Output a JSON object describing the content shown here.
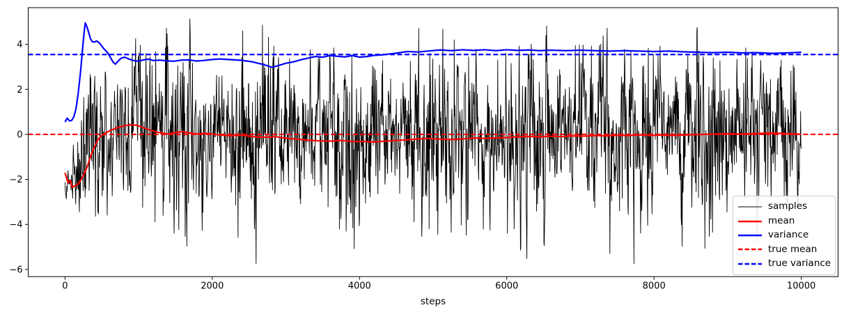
{
  "chart_data": {
    "type": "line",
    "title": "",
    "xlabel": "steps",
    "ylabel": "",
    "grid": false,
    "legend_position": "lower right",
    "xlim": [
      -500,
      10500
    ],
    "ylim": [
      -6.32,
      5.63
    ],
    "x_ticks": {
      "values": [
        0,
        2000,
        4000,
        6000,
        8000,
        10000
      ],
      "labels": [
        "0",
        "2000",
        "4000",
        "6000",
        "8000",
        "10000"
      ]
    },
    "y_ticks": {
      "values": [
        4,
        2,
        0,
        -2,
        -4,
        -6
      ],
      "labels": [
        "4",
        "2",
        "0",
        "−2",
        "−4",
        "−6"
      ]
    },
    "axhlines": {
      "true_mean": {
        "y": 0.0,
        "color": "#ff0000",
        "dash": "dashed",
        "linewidth": 2.2
      },
      "true_variance": {
        "y": 3.55,
        "color": "#0000ff",
        "dash": "dashed",
        "linewidth": 2.2
      }
    },
    "series": [
      {
        "name": "samples",
        "color": "#000000",
        "linewidth": 0.9,
        "style": "solid",
        "model": {
          "description": "noisy sample trace, ~10000 correlated random draws; starts clustered near -2.2 then spreads to stationary mean 0, std ~1.82 (variance ~3.55); observed extremes about -5.75 and +5.15",
          "seed": 1337,
          "n_points": 2200,
          "x_max": 10000,
          "initial_center": -2.2,
          "initial_spread": 0.32,
          "warmup_start_step": 60,
          "warmup_end_step": 380,
          "stationary_mean": 0,
          "stationary_std": 1.82,
          "ar_coeff": 0.42,
          "observed_min": -5.75,
          "observed_max": 5.15
        }
      },
      {
        "name": "mean",
        "color": "#ff0000",
        "linewidth": 2.2,
        "style": "solid",
        "points": [
          [
            0,
            -1.7
          ],
          [
            40,
            -2.15
          ],
          [
            70,
            -2.05
          ],
          [
            100,
            -2.35
          ],
          [
            140,
            -2.28
          ],
          [
            180,
            -2.2
          ],
          [
            220,
            -2.0
          ],
          [
            260,
            -1.75
          ],
          [
            300,
            -1.45
          ],
          [
            350,
            -0.95
          ],
          [
            400,
            -0.55
          ],
          [
            450,
            -0.22
          ],
          [
            500,
            -0.05
          ],
          [
            560,
            0.08
          ],
          [
            620,
            0.18
          ],
          [
            700,
            0.28
          ],
          [
            800,
            0.38
          ],
          [
            900,
            0.43
          ],
          [
            980,
            0.4
          ],
          [
            1060,
            0.3
          ],
          [
            1150,
            0.2
          ],
          [
            1250,
            0.1
          ],
          [
            1350,
            0.04
          ],
          [
            1420,
            0.02
          ],
          [
            1500,
            0.09
          ],
          [
            1600,
            0.12
          ],
          [
            1700,
            0.06
          ],
          [
            1800,
            0.02
          ],
          [
            1900,
            0.05
          ],
          [
            2000,
            0.02
          ],
          [
            2100,
            -0.03
          ],
          [
            2250,
            -0.06
          ],
          [
            2400,
            -0.03
          ],
          [
            2550,
            -0.1
          ],
          [
            2700,
            -0.13
          ],
          [
            2850,
            -0.1
          ],
          [
            3000,
            -0.17
          ],
          [
            3150,
            -0.21
          ],
          [
            3300,
            -0.26
          ],
          [
            3450,
            -0.29
          ],
          [
            3600,
            -0.3
          ],
          [
            3750,
            -0.27
          ],
          [
            3900,
            -0.32
          ],
          [
            4050,
            -0.31
          ],
          [
            4200,
            -0.34
          ],
          [
            4350,
            -0.3
          ],
          [
            4500,
            -0.27
          ],
          [
            4650,
            -0.24
          ],
          [
            4800,
            -0.2
          ],
          [
            4950,
            -0.18
          ],
          [
            5100,
            -0.21
          ],
          [
            5250,
            -0.23
          ],
          [
            5400,
            -0.2
          ],
          [
            5550,
            -0.16
          ],
          [
            5700,
            -0.18
          ],
          [
            5850,
            -0.16
          ],
          [
            6000,
            -0.14
          ],
          [
            6150,
            -0.11
          ],
          [
            6300,
            -0.09
          ],
          [
            6450,
            -0.11
          ],
          [
            6600,
            -0.08
          ],
          [
            6750,
            -0.1
          ],
          [
            6900,
            -0.07
          ],
          [
            7050,
            -0.08
          ],
          [
            7200,
            -0.05
          ],
          [
            7350,
            -0.07
          ],
          [
            7500,
            -0.04
          ],
          [
            7650,
            -0.05
          ],
          [
            7800,
            -0.02
          ],
          [
            7950,
            -0.05
          ],
          [
            8100,
            -0.03
          ],
          [
            8250,
            -0.05
          ],
          [
            8400,
            -0.03
          ],
          [
            8550,
            -0.01
          ],
          [
            8700,
            0.0
          ],
          [
            8850,
            0.02
          ],
          [
            9000,
            0.03
          ],
          [
            9150,
            0.01
          ],
          [
            9300,
            0.03
          ],
          [
            9450,
            0.05
          ],
          [
            9600,
            0.06
          ],
          [
            9750,
            0.04
          ],
          [
            9900,
            0.02
          ],
          [
            10000,
            0.0
          ]
        ]
      },
      {
        "name": "variance",
        "color": "#0000ff",
        "linewidth": 2.2,
        "style": "solid",
        "points": [
          [
            0,
            0.55
          ],
          [
            30,
            0.72
          ],
          [
            60,
            0.6
          ],
          [
            90,
            0.62
          ],
          [
            120,
            0.78
          ],
          [
            150,
            1.15
          ],
          [
            180,
            1.85
          ],
          [
            210,
            2.75
          ],
          [
            240,
            3.85
          ],
          [
            260,
            4.55
          ],
          [
            275,
            4.95
          ],
          [
            295,
            4.8
          ],
          [
            320,
            4.55
          ],
          [
            345,
            4.25
          ],
          [
            370,
            4.12
          ],
          [
            400,
            4.1
          ],
          [
            430,
            4.15
          ],
          [
            465,
            4.07
          ],
          [
            500,
            3.92
          ],
          [
            540,
            3.76
          ],
          [
            580,
            3.62
          ],
          [
            620,
            3.4
          ],
          [
            655,
            3.2
          ],
          [
            685,
            3.12
          ],
          [
            720,
            3.25
          ],
          [
            760,
            3.38
          ],
          [
            810,
            3.43
          ],
          [
            860,
            3.36
          ],
          [
            910,
            3.3
          ],
          [
            960,
            3.26
          ],
          [
            1020,
            3.27
          ],
          [
            1080,
            3.32
          ],
          [
            1140,
            3.34
          ],
          [
            1200,
            3.28
          ],
          [
            1280,
            3.3
          ],
          [
            1380,
            3.27
          ],
          [
            1480,
            3.25
          ],
          [
            1580,
            3.3
          ],
          [
            1680,
            3.31
          ],
          [
            1780,
            3.26
          ],
          [
            1880,
            3.28
          ],
          [
            1980,
            3.32
          ],
          [
            2100,
            3.35
          ],
          [
            2250,
            3.32
          ],
          [
            2400,
            3.29
          ],
          [
            2550,
            3.22
          ],
          [
            2700,
            3.1
          ],
          [
            2810,
            2.98
          ],
          [
            2900,
            3.06
          ],
          [
            3000,
            3.16
          ],
          [
            3100,
            3.22
          ],
          [
            3200,
            3.31
          ],
          [
            3300,
            3.39
          ],
          [
            3400,
            3.46
          ],
          [
            3500,
            3.43
          ],
          [
            3600,
            3.5
          ],
          [
            3700,
            3.47
          ],
          [
            3800,
            3.44
          ],
          [
            3900,
            3.5
          ],
          [
            4000,
            3.43
          ],
          [
            4100,
            3.46
          ],
          [
            4200,
            3.51
          ],
          [
            4300,
            3.53
          ],
          [
            4400,
            3.57
          ],
          [
            4500,
            3.61
          ],
          [
            4650,
            3.68
          ],
          [
            4800,
            3.66
          ],
          [
            4950,
            3.71
          ],
          [
            5100,
            3.75
          ],
          [
            5250,
            3.72
          ],
          [
            5400,
            3.76
          ],
          [
            5550,
            3.73
          ],
          [
            5700,
            3.76
          ],
          [
            5850,
            3.72
          ],
          [
            6000,
            3.76
          ],
          [
            6150,
            3.73
          ],
          [
            6300,
            3.75
          ],
          [
            6450,
            3.72
          ],
          [
            6600,
            3.74
          ],
          [
            6800,
            3.72
          ],
          [
            7000,
            3.74
          ],
          [
            7200,
            3.72
          ],
          [
            7400,
            3.7
          ],
          [
            7600,
            3.72
          ],
          [
            7800,
            3.7
          ],
          [
            8000,
            3.68
          ],
          [
            8200,
            3.7
          ],
          [
            8400,
            3.67
          ],
          [
            8600,
            3.65
          ],
          [
            8800,
            3.63
          ],
          [
            9000,
            3.65
          ],
          [
            9200,
            3.62
          ],
          [
            9400,
            3.63
          ],
          [
            9600,
            3.6
          ],
          [
            9800,
            3.62
          ],
          [
            10000,
            3.65
          ]
        ]
      }
    ]
  },
  "legend": {
    "items": [
      {
        "label": "samples",
        "color": "#000000",
        "dash": "solid",
        "width": 1.1
      },
      {
        "label": "mean",
        "color": "#ff0000",
        "dash": "solid",
        "width": 2.4
      },
      {
        "label": "variance",
        "color": "#0000ff",
        "dash": "solid",
        "width": 2.4
      },
      {
        "label": "true mean",
        "color": "#ff0000",
        "dash": "dashed",
        "width": 2.4
      },
      {
        "label": "true variance",
        "color": "#0000ff",
        "dash": "dashed",
        "width": 2.4
      }
    ]
  }
}
